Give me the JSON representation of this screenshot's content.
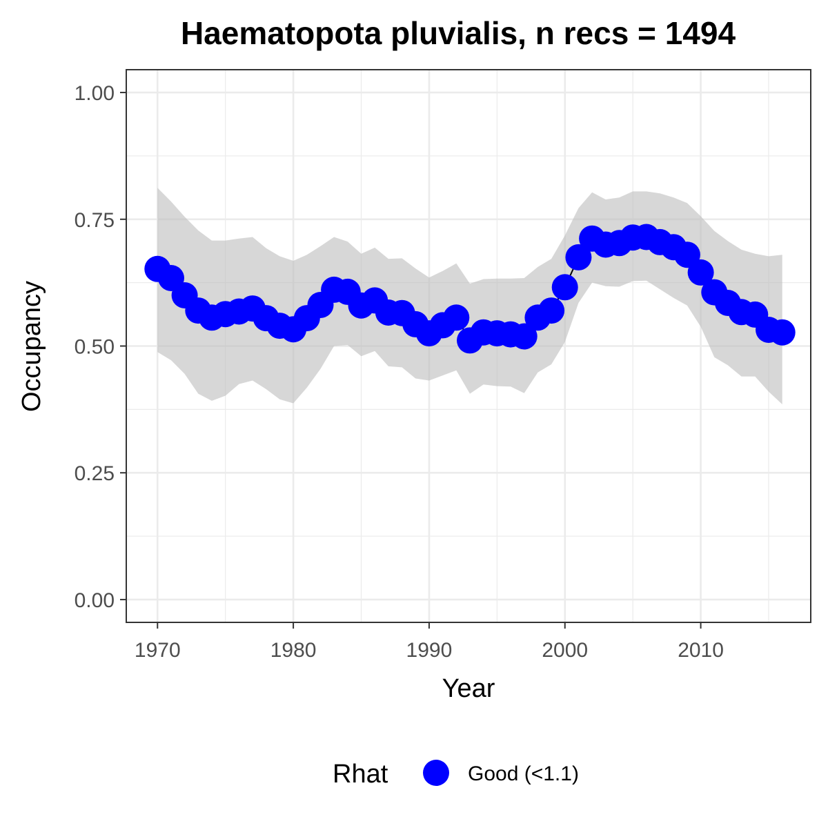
{
  "chart_data": {
    "type": "line",
    "title": "Haematopota pluvialis, n recs = 1494",
    "xlabel": "Year",
    "ylabel": "Occupancy",
    "xlim": [
      1967.7,
      2018.1
    ],
    "ylim": [
      -0.045,
      1.045
    ],
    "x_ticks": [
      1970,
      1980,
      1990,
      2000,
      2010
    ],
    "x_tick_labels": [
      "1970",
      "1980",
      "1990",
      "2000",
      "2010"
    ],
    "y_ticks": [
      0,
      0.25,
      0.5,
      0.75,
      1
    ],
    "y_tick_labels": [
      "0.00",
      "0.25",
      "0.50",
      "0.75",
      "1.00"
    ],
    "grid": true,
    "legend": {
      "title": "Rhat",
      "position": "bottom",
      "entries": [
        {
          "label": "Good (<1.1)",
          "color": "#0000ff"
        }
      ]
    },
    "colors": {
      "points": "#0000ff",
      "ribbon": "#bdbdbd",
      "line": "#000000",
      "panel_border": "#333333",
      "grid": "#ebebeb"
    },
    "x": [
      1970,
      1971,
      1972,
      1973,
      1974,
      1975,
      1976,
      1977,
      1978,
      1979,
      1980,
      1981,
      1982,
      1983,
      1984,
      1985,
      1986,
      1987,
      1988,
      1989,
      1990,
      1991,
      1992,
      1993,
      1994,
      1995,
      1996,
      1997,
      1998,
      1999,
      2000,
      2001,
      2002,
      2003,
      2004,
      2005,
      2006,
      2007,
      2008,
      2009,
      2010,
      2011,
      2012,
      2013,
      2014,
      2015,
      2016
    ],
    "series": [
      {
        "values": [
          0.652,
          0.634,
          0.6,
          0.57,
          0.556,
          0.563,
          0.568,
          0.574,
          0.555,
          0.54,
          0.533,
          0.555,
          0.581,
          0.611,
          0.607,
          0.58,
          0.59,
          0.566,
          0.565,
          0.543,
          0.525,
          0.541,
          0.556,
          0.511,
          0.527,
          0.525,
          0.523,
          0.519,
          0.556,
          0.57,
          0.616,
          0.675,
          0.712,
          0.7,
          0.703,
          0.714,
          0.715,
          0.705,
          0.695,
          0.68,
          0.645,
          0.606,
          0.585,
          0.567,
          0.562,
          0.532,
          0.527
        ],
        "lower": [
          0.488,
          0.472,
          0.445,
          0.406,
          0.392,
          0.402,
          0.425,
          0.432,
          0.415,
          0.395,
          0.387,
          0.418,
          0.455,
          0.5,
          0.502,
          0.48,
          0.49,
          0.46,
          0.458,
          0.436,
          0.432,
          0.442,
          0.452,
          0.406,
          0.424,
          0.421,
          0.42,
          0.407,
          0.448,
          0.464,
          0.508,
          0.585,
          0.625,
          0.618,
          0.617,
          0.628,
          0.629,
          0.612,
          0.595,
          0.58,
          0.538,
          0.478,
          0.462,
          0.44,
          0.44,
          0.41,
          0.385
        ],
        "upper": [
          0.812,
          0.785,
          0.755,
          0.728,
          0.708,
          0.708,
          0.712,
          0.715,
          0.693,
          0.677,
          0.668,
          0.68,
          0.697,
          0.715,
          0.706,
          0.682,
          0.694,
          0.672,
          0.673,
          0.653,
          0.635,
          0.648,
          0.663,
          0.623,
          0.632,
          0.633,
          0.633,
          0.634,
          0.656,
          0.672,
          0.718,
          0.772,
          0.803,
          0.789,
          0.793,
          0.805,
          0.805,
          0.801,
          0.793,
          0.782,
          0.756,
          0.727,
          0.707,
          0.69,
          0.682,
          0.677,
          0.68
        ]
      }
    ]
  }
}
